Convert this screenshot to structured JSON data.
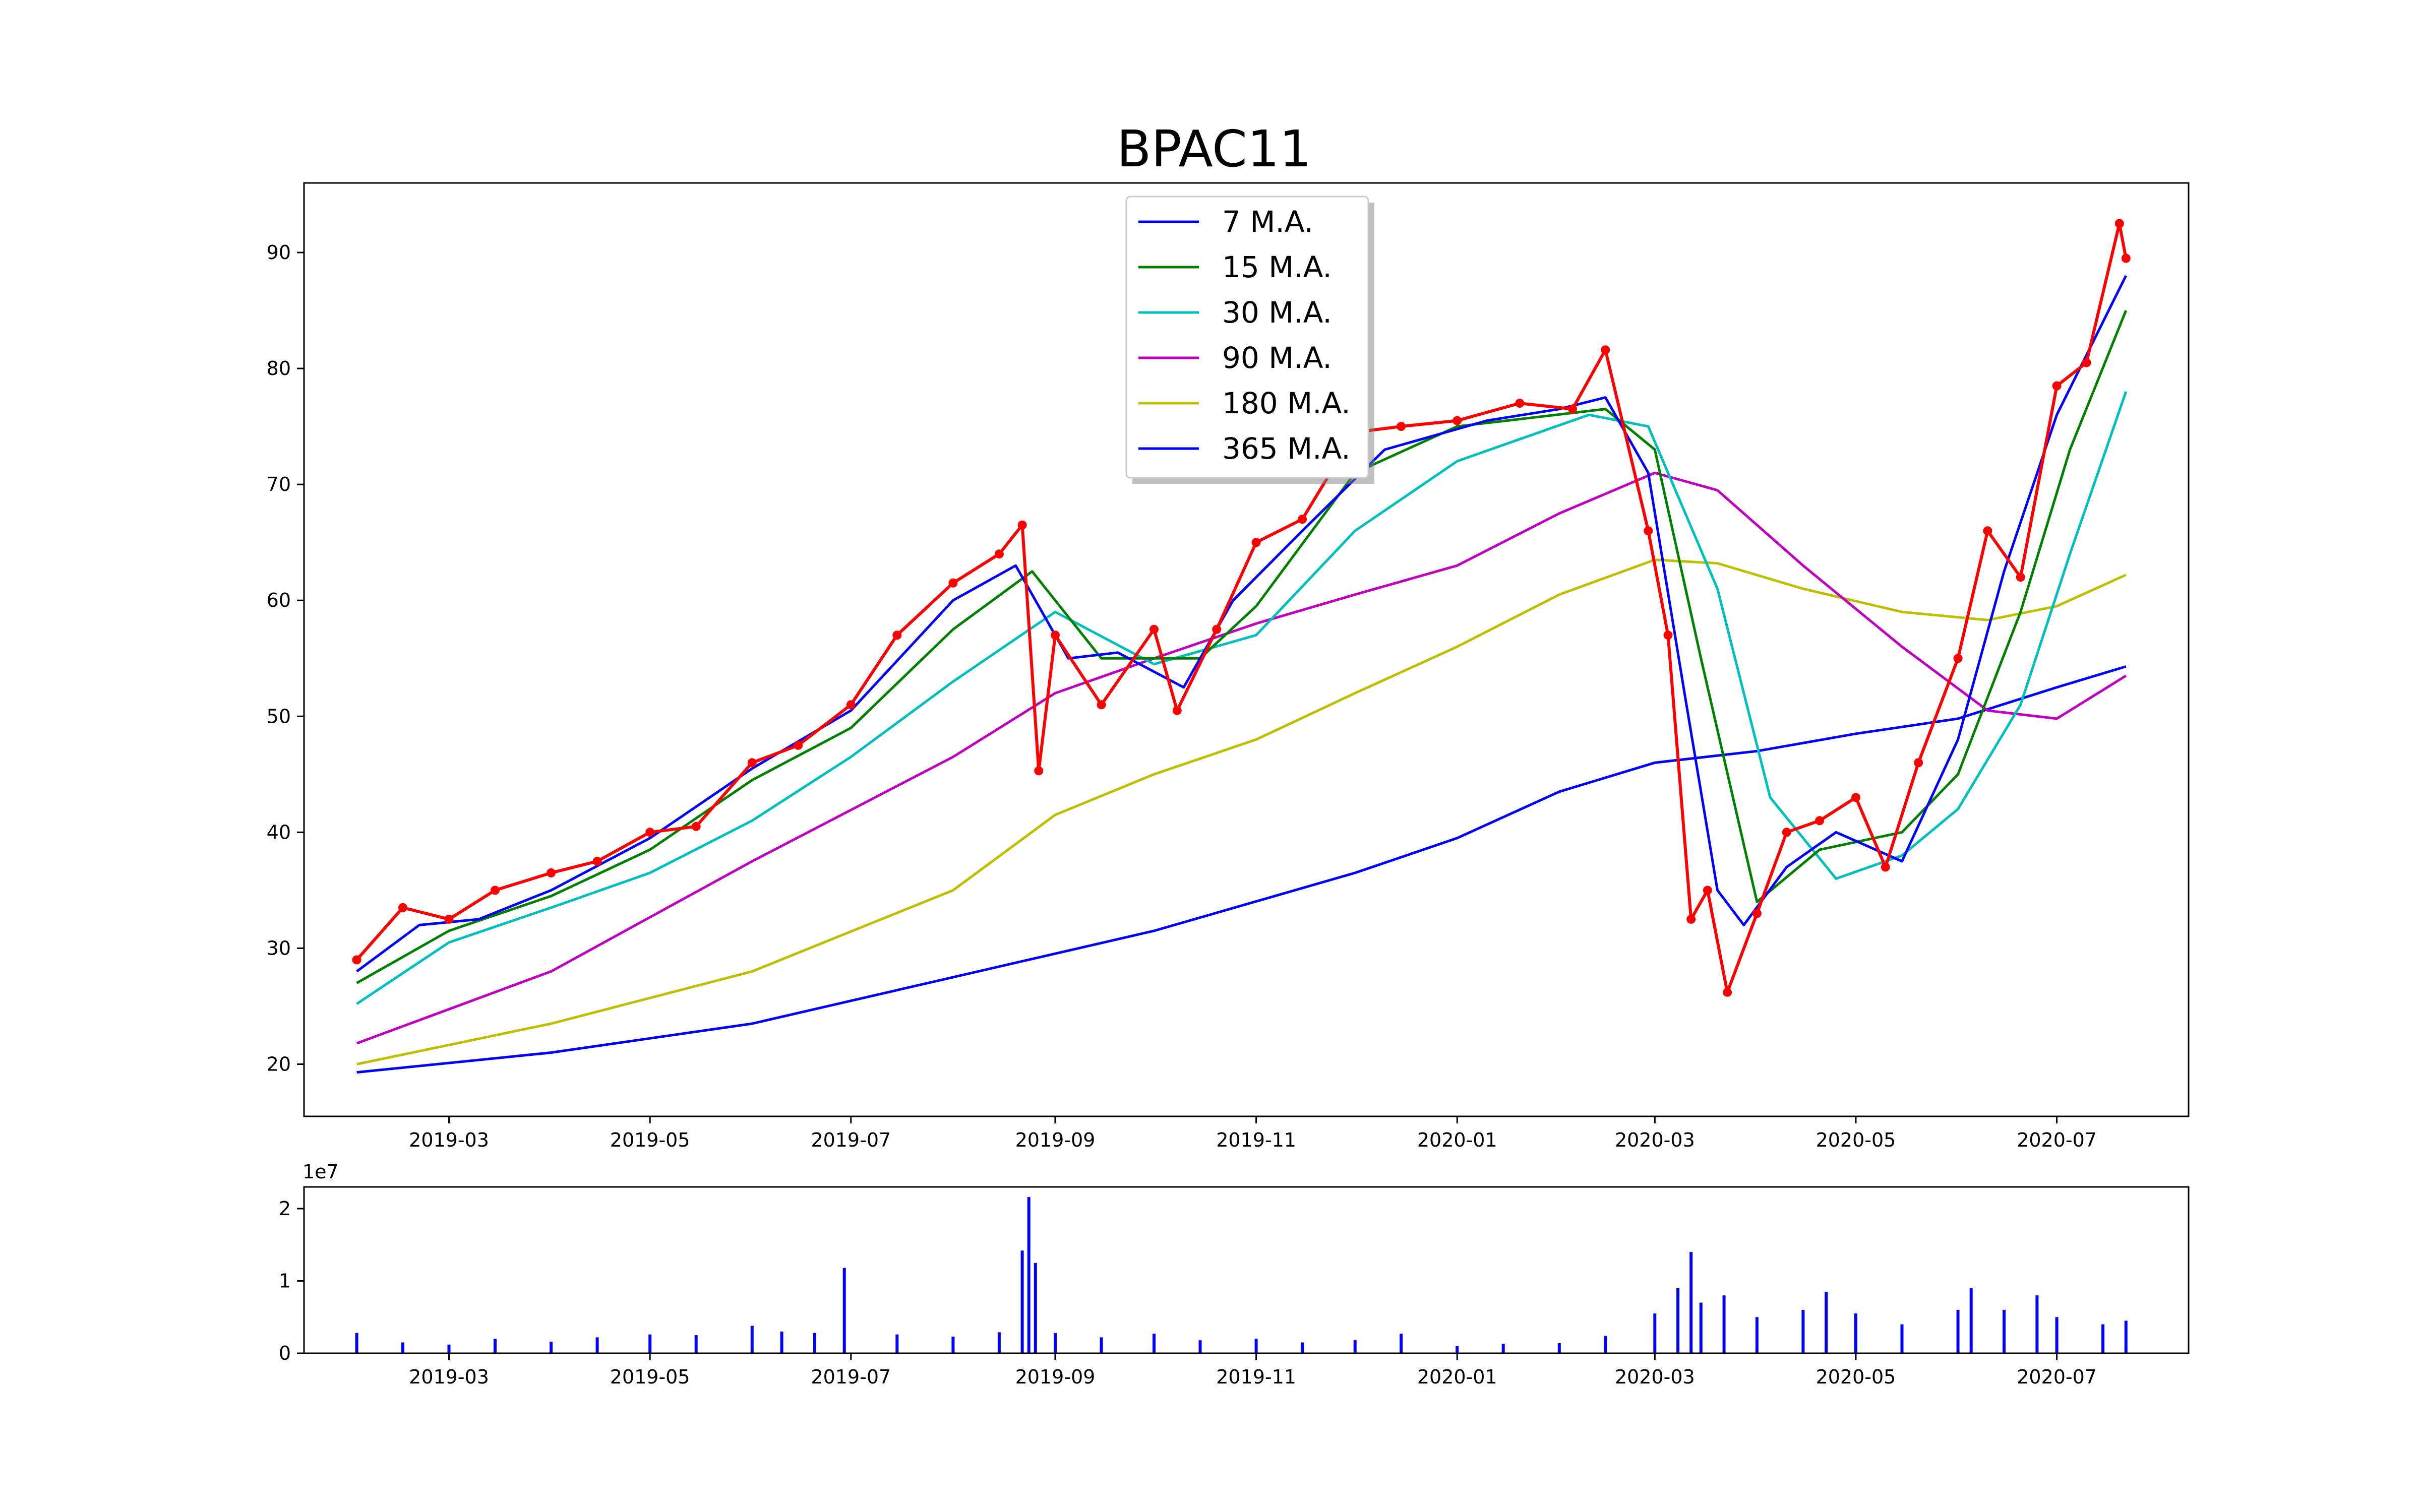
{
  "chart_data": [
    {
      "type": "line",
      "title": "BPAC11",
      "xlabel": "",
      "ylabel": "",
      "x_axis": {
        "type": "date",
        "range": [
          "2019-01-16",
          "2020-08-10"
        ],
        "tick_labels": [
          "2019-03",
          "2019-05",
          "2019-07",
          "2019-09",
          "2019-11",
          "2020-01",
          "2020-03",
          "2020-05",
          "2020-07"
        ]
      },
      "y_axis": {
        "range": [
          15.5,
          96.0
        ],
        "ticks": [
          20,
          30,
          40,
          50,
          60,
          70,
          80,
          90
        ],
        "tick_labels": [
          "20",
          "30",
          "40",
          "50",
          "60",
          "70",
          "80",
          "90"
        ]
      },
      "grid": false,
      "legend": {
        "placement": "upper-center",
        "entries": [
          "7 M.A.",
          "15 M.A.",
          "30 M.A.",
          "90 M.A.",
          "180 M.A.",
          "365 M.A."
        ]
      },
      "colors": {
        "price": "#ff0000",
        "ma7": "#0000ff",
        "ma15": "#008000",
        "ma30": "#00bfbf",
        "ma90": "#bf00bf",
        "ma180": "#bfbf00",
        "ma365": "#0000ff"
      },
      "series": [
        {
          "key": "price",
          "marker": "dot",
          "x": [
            "2019-02-01",
            "2019-02-15",
            "2019-03-01",
            "2019-03-15",
            "2019-04-01",
            "2019-04-15",
            "2019-05-01",
            "2019-05-15",
            "2019-06-01",
            "2019-06-15",
            "2019-07-01",
            "2019-07-15",
            "2019-08-01",
            "2019-08-15",
            "2019-08-22",
            "2019-08-27",
            "2019-09-01",
            "2019-09-15",
            "2019-10-01",
            "2019-10-08",
            "2019-10-20",
            "2019-11-01",
            "2019-11-15",
            "2019-12-01",
            "2019-12-15",
            "2020-01-01",
            "2020-01-20",
            "2020-02-05",
            "2020-02-15",
            "2020-02-28",
            "2020-03-05",
            "2020-03-12",
            "2020-03-17",
            "2020-03-23",
            "2020-04-01",
            "2020-04-10",
            "2020-04-20",
            "2020-05-01",
            "2020-05-10",
            "2020-05-20",
            "2020-06-01",
            "2020-06-10",
            "2020-06-20",
            "2020-07-01",
            "2020-07-10",
            "2020-07-20",
            "2020-07-22"
          ],
          "y": [
            29.0,
            33.5,
            32.5,
            35.0,
            36.5,
            37.5,
            40.0,
            40.5,
            46.0,
            47.5,
            51.0,
            57.0,
            61.5,
            64.0,
            66.5,
            45.3,
            57.0,
            51.0,
            57.5,
            50.5,
            57.5,
            65.0,
            67.0,
            74.5,
            75.0,
            75.5,
            77.0,
            76.5,
            81.6,
            66.0,
            57.0,
            32.5,
            35.0,
            26.2,
            33.0,
            40.0,
            41.0,
            43.0,
            37.0,
            46.0,
            55.0,
            66.0,
            62.0,
            78.5,
            80.5,
            92.5,
            89.5
          ]
        },
        {
          "key": "ma7",
          "x": [
            "2019-02-01",
            "2019-02-20",
            "2019-03-10",
            "2019-04-01",
            "2019-05-01",
            "2019-06-01",
            "2019-07-01",
            "2019-08-01",
            "2019-08-20",
            "2019-09-05",
            "2019-09-20",
            "2019-10-10",
            "2019-10-25",
            "2019-11-15",
            "2019-12-10",
            "2020-01-10",
            "2020-02-01",
            "2020-02-15",
            "2020-02-28",
            "2020-03-10",
            "2020-03-20",
            "2020-03-28",
            "2020-04-10",
            "2020-04-25",
            "2020-05-15",
            "2020-06-01",
            "2020-06-15",
            "2020-07-01",
            "2020-07-22"
          ],
          "y": [
            28.0,
            32.0,
            32.5,
            35.0,
            39.5,
            45.5,
            50.5,
            60.0,
            63.0,
            55.0,
            55.5,
            52.5,
            60.0,
            66.0,
            73.0,
            75.5,
            76.5,
            77.5,
            71.0,
            52.0,
            35.0,
            32.0,
            37.0,
            40.0,
            37.5,
            48.0,
            62.5,
            76.0,
            88.0
          ]
        },
        {
          "key": "ma15",
          "x": [
            "2019-02-01",
            "2019-03-01",
            "2019-04-01",
            "2019-05-01",
            "2019-06-01",
            "2019-07-01",
            "2019-08-01",
            "2019-08-25",
            "2019-09-15",
            "2019-10-15",
            "2019-11-01",
            "2019-12-01",
            "2020-01-01",
            "2020-02-15",
            "2020-03-01",
            "2020-03-15",
            "2020-04-01",
            "2020-04-20",
            "2020-05-15",
            "2020-06-01",
            "2020-06-20",
            "2020-07-05",
            "2020-07-22"
          ],
          "y": [
            27.0,
            31.5,
            34.5,
            38.5,
            44.5,
            49.0,
            57.5,
            62.5,
            55.0,
            55.0,
            59.5,
            71.0,
            75.0,
            76.5,
            73.0,
            55.0,
            34.0,
            38.5,
            40.0,
            45.0,
            59.0,
            73.0,
            85.0
          ]
        },
        {
          "key": "ma30",
          "x": [
            "2019-02-01",
            "2019-03-01",
            "2019-04-01",
            "2019-05-01",
            "2019-06-01",
            "2019-07-01",
            "2019-08-01",
            "2019-09-01",
            "2019-10-01",
            "2019-11-01",
            "2019-12-01",
            "2020-01-01",
            "2020-02-10",
            "2020-02-28",
            "2020-03-20",
            "2020-04-05",
            "2020-04-25",
            "2020-05-15",
            "2020-06-01",
            "2020-06-20",
            "2020-07-05",
            "2020-07-22"
          ],
          "y": [
            25.2,
            30.5,
            33.5,
            36.5,
            41.0,
            46.5,
            53.0,
            59.0,
            54.5,
            57.0,
            66.0,
            72.0,
            76.0,
            75.0,
            61.0,
            43.0,
            36.0,
            38.0,
            42.0,
            51.0,
            64.0,
            78.0
          ]
        },
        {
          "key": "ma90",
          "x": [
            "2019-02-01",
            "2019-04-01",
            "2019-06-01",
            "2019-08-01",
            "2019-09-01",
            "2019-10-01",
            "2019-11-01",
            "2019-12-01",
            "2020-01-01",
            "2020-02-01",
            "2020-03-01",
            "2020-03-20",
            "2020-04-15",
            "2020-05-15",
            "2020-06-10",
            "2020-07-01",
            "2020-07-22"
          ],
          "y": [
            21.8,
            28.0,
            37.5,
            46.5,
            52.0,
            55.0,
            58.0,
            60.5,
            63.0,
            67.5,
            71.0,
            69.5,
            63.0,
            56.0,
            50.5,
            49.8,
            53.5
          ]
        },
        {
          "key": "ma180",
          "x": [
            "2019-02-01",
            "2019-04-01",
            "2019-06-01",
            "2019-08-01",
            "2019-09-01",
            "2019-10-01",
            "2019-11-01",
            "2019-12-01",
            "2020-01-01",
            "2020-02-01",
            "2020-03-01",
            "2020-03-20",
            "2020-04-15",
            "2020-05-15",
            "2020-06-10",
            "2020-07-01",
            "2020-07-22"
          ],
          "y": [
            20.0,
            23.5,
            28.0,
            35.0,
            41.5,
            45.0,
            48.0,
            52.0,
            56.0,
            60.5,
            63.5,
            63.2,
            61.0,
            59.0,
            58.3,
            59.5,
            62.2
          ]
        },
        {
          "key": "ma365",
          "x": [
            "2019-02-01",
            "2019-04-01",
            "2019-06-01",
            "2019-08-01",
            "2019-10-01",
            "2019-12-01",
            "2020-01-01",
            "2020-02-01",
            "2020-03-01",
            "2020-04-01",
            "2020-05-01",
            "2020-06-01",
            "2020-07-01",
            "2020-07-22"
          ],
          "y": [
            19.3,
            21.0,
            23.5,
            27.5,
            31.5,
            36.5,
            39.5,
            43.5,
            46.0,
            47.0,
            48.5,
            49.8,
            52.5,
            54.3
          ]
        }
      ]
    },
    {
      "type": "bar",
      "title": "",
      "xlabel": "",
      "ylabel": "",
      "x_axis": {
        "type": "date",
        "range": [
          "2019-01-16",
          "2020-08-10"
        ],
        "tick_labels": [
          "2019-03",
          "2019-05",
          "2019-07",
          "2019-09",
          "2019-11",
          "2020-01",
          "2020-03",
          "2020-05",
          "2020-07"
        ]
      },
      "y_axis": {
        "range": [
          0,
          23000000
        ],
        "ticks": [
          0,
          10000000,
          20000000
        ],
        "tick_labels": [
          "0",
          "1",
          "2"
        ],
        "offset_text": "1e7"
      },
      "color": "#0000ff",
      "series": [
        {
          "name": "",
          "x": [
            "2019-02-01",
            "2019-02-15",
            "2019-03-01",
            "2019-03-15",
            "2019-04-01",
            "2019-04-15",
            "2019-05-01",
            "2019-05-15",
            "2019-06-01",
            "2019-06-10",
            "2019-06-20",
            "2019-06-29",
            "2019-07-15",
            "2019-08-01",
            "2019-08-15",
            "2019-08-22",
            "2019-08-24",
            "2019-08-26",
            "2019-09-01",
            "2019-09-15",
            "2019-10-01",
            "2019-10-15",
            "2019-11-01",
            "2019-11-15",
            "2019-12-01",
            "2019-12-15",
            "2020-01-01",
            "2020-01-15",
            "2020-02-01",
            "2020-02-15",
            "2020-03-01",
            "2020-03-08",
            "2020-03-12",
            "2020-03-15",
            "2020-03-22",
            "2020-04-01",
            "2020-04-15",
            "2020-04-22",
            "2020-05-01",
            "2020-05-15",
            "2020-06-01",
            "2020-06-05",
            "2020-06-15",
            "2020-06-25",
            "2020-07-01",
            "2020-07-15",
            "2020-07-22"
          ],
          "y": [
            2800000,
            1500000,
            1200000,
            2000000,
            1600000,
            2200000,
            2600000,
            2500000,
            3800000,
            3000000,
            2800000,
            11800000,
            2600000,
            2300000,
            2900000,
            14200000,
            21600000,
            12500000,
            2800000,
            2200000,
            2700000,
            1800000,
            2000000,
            1500000,
            1800000,
            2700000,
            1000000,
            1300000,
            1400000,
            2400000,
            5500000,
            9000000,
            14000000,
            7000000,
            8000000,
            5000000,
            6000000,
            8500000,
            5500000,
            4000000,
            6000000,
            9000000,
            6000000,
            8000000,
            5000000,
            4000000,
            4500000
          ]
        }
      ]
    }
  ]
}
